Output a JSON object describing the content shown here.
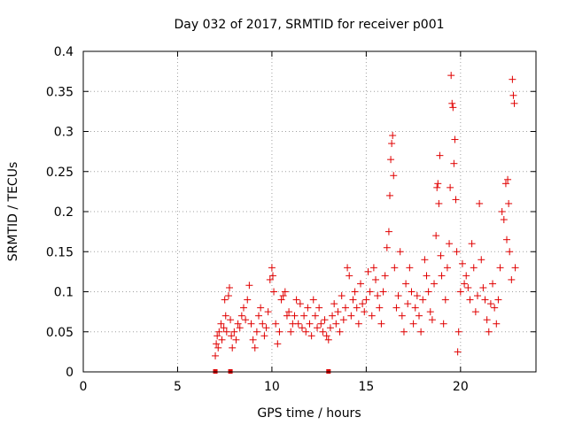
{
  "chart_data": {
    "type": "scatter",
    "title": "Day 032 of 2017, SRMTID for receiver p001",
    "xlabel": "GPS time / hours",
    "ylabel": "SRMTID / TECUs",
    "xlim": [
      0,
      24
    ],
    "ylim": [
      0,
      0.4
    ],
    "xticks": [
      0,
      5,
      10,
      15,
      20
    ],
    "yticks": [
      0,
      0.05,
      0.1,
      0.15,
      0.2,
      0.25,
      0.3,
      0.35,
      0.4
    ],
    "xtick_labels": [
      "0",
      "5",
      "10",
      "15",
      "20"
    ],
    "ytick_labels": [
      "0",
      "0.05",
      "0.1",
      "0.15",
      "0.2",
      "0.25",
      "0.3",
      "0.35",
      "0.4"
    ],
    "grid": true,
    "marker": "+",
    "color": "#e00000",
    "data_gaps_x": [
      7.0,
      7.8,
      13.0
    ],
    "series": [
      {
        "name": "SRMTID",
        "points": [
          [
            7.0,
            0.02
          ],
          [
            7.05,
            0.035
          ],
          [
            7.1,
            0.045
          ],
          [
            7.15,
            0.03
          ],
          [
            7.2,
            0.05
          ],
          [
            7.3,
            0.06
          ],
          [
            7.35,
            0.04
          ],
          [
            7.45,
            0.055
          ],
          [
            7.5,
            0.09
          ],
          [
            7.55,
            0.07
          ],
          [
            7.6,
            0.05
          ],
          [
            7.7,
            0.095
          ],
          [
            7.75,
            0.105
          ],
          [
            7.8,
            0.065
          ],
          [
            7.85,
            0.045
          ],
          [
            7.9,
            0.03
          ],
          [
            8.0,
            0.05
          ],
          [
            8.1,
            0.04
          ],
          [
            8.2,
            0.06
          ],
          [
            8.3,
            0.055
          ],
          [
            8.4,
            0.07
          ],
          [
            8.5,
            0.08
          ],
          [
            8.6,
            0.065
          ],
          [
            8.7,
            0.09
          ],
          [
            8.8,
            0.108
          ],
          [
            8.9,
            0.06
          ],
          [
            9.0,
            0.04
          ],
          [
            9.1,
            0.03
          ],
          [
            9.2,
            0.05
          ],
          [
            9.3,
            0.07
          ],
          [
            9.4,
            0.08
          ],
          [
            9.5,
            0.06
          ],
          [
            9.6,
            0.045
          ],
          [
            9.7,
            0.055
          ],
          [
            9.8,
            0.075
          ],
          [
            9.9,
            0.115
          ],
          [
            10.0,
            0.13
          ],
          [
            10.05,
            0.12
          ],
          [
            10.1,
            0.1
          ],
          [
            10.2,
            0.06
          ],
          [
            10.3,
            0.035
          ],
          [
            10.4,
            0.05
          ],
          [
            10.5,
            0.09
          ],
          [
            10.6,
            0.095
          ],
          [
            10.7,
            0.1
          ],
          [
            10.8,
            0.07
          ],
          [
            10.9,
            0.075
          ],
          [
            11.0,
            0.05
          ],
          [
            11.1,
            0.06
          ],
          [
            11.2,
            0.07
          ],
          [
            11.3,
            0.09
          ],
          [
            11.4,
            0.06
          ],
          [
            11.5,
            0.085
          ],
          [
            11.6,
            0.055
          ],
          [
            11.7,
            0.07
          ],
          [
            11.8,
            0.05
          ],
          [
            11.9,
            0.08
          ],
          [
            12.0,
            0.06
          ],
          [
            12.1,
            0.045
          ],
          [
            12.2,
            0.09
          ],
          [
            12.3,
            0.07
          ],
          [
            12.4,
            0.055
          ],
          [
            12.5,
            0.08
          ],
          [
            12.6,
            0.06
          ],
          [
            12.7,
            0.05
          ],
          [
            12.8,
            0.065
          ],
          [
            12.9,
            0.045
          ],
          [
            13.0,
            0.04
          ],
          [
            13.1,
            0.055
          ],
          [
            13.2,
            0.07
          ],
          [
            13.3,
            0.085
          ],
          [
            13.4,
            0.06
          ],
          [
            13.5,
            0.075
          ],
          [
            13.6,
            0.05
          ],
          [
            13.7,
            0.095
          ],
          [
            13.8,
            0.065
          ],
          [
            13.9,
            0.08
          ],
          [
            14.0,
            0.13
          ],
          [
            14.1,
            0.12
          ],
          [
            14.2,
            0.07
          ],
          [
            14.3,
            0.09
          ],
          [
            14.4,
            0.1
          ],
          [
            14.5,
            0.08
          ],
          [
            14.6,
            0.06
          ],
          [
            14.7,
            0.11
          ],
          [
            14.8,
            0.085
          ],
          [
            14.9,
            0.075
          ],
          [
            15.0,
            0.09
          ],
          [
            15.1,
            0.125
          ],
          [
            15.2,
            0.1
          ],
          [
            15.3,
            0.07
          ],
          [
            15.4,
            0.13
          ],
          [
            15.5,
            0.115
          ],
          [
            15.6,
            0.095
          ],
          [
            15.7,
            0.08
          ],
          [
            15.8,
            0.06
          ],
          [
            15.9,
            0.1
          ],
          [
            16.0,
            0.12
          ],
          [
            16.1,
            0.155
          ],
          [
            16.2,
            0.175
          ],
          [
            16.25,
            0.22
          ],
          [
            16.3,
            0.265
          ],
          [
            16.35,
            0.285
          ],
          [
            16.4,
            0.295
          ],
          [
            16.45,
            0.245
          ],
          [
            16.5,
            0.13
          ],
          [
            16.6,
            0.08
          ],
          [
            16.7,
            0.095
          ],
          [
            16.8,
            0.15
          ],
          [
            16.9,
            0.07
          ],
          [
            17.0,
            0.05
          ],
          [
            17.1,
            0.11
          ],
          [
            17.2,
            0.085
          ],
          [
            17.3,
            0.13
          ],
          [
            17.4,
            0.1
          ],
          [
            17.5,
            0.06
          ],
          [
            17.6,
            0.08
          ],
          [
            17.7,
            0.095
          ],
          [
            17.8,
            0.07
          ],
          [
            17.9,
            0.05
          ],
          [
            18.0,
            0.09
          ],
          [
            18.1,
            0.14
          ],
          [
            18.2,
            0.12
          ],
          [
            18.3,
            0.1
          ],
          [
            18.4,
            0.075
          ],
          [
            18.5,
            0.065
          ],
          [
            18.6,
            0.11
          ],
          [
            18.7,
            0.17
          ],
          [
            18.75,
            0.23
          ],
          [
            18.8,
            0.235
          ],
          [
            18.85,
            0.21
          ],
          [
            18.9,
            0.27
          ],
          [
            18.95,
            0.145
          ],
          [
            19.0,
            0.12
          ],
          [
            19.1,
            0.06
          ],
          [
            19.2,
            0.09
          ],
          [
            19.3,
            0.13
          ],
          [
            19.4,
            0.16
          ],
          [
            19.45,
            0.23
          ],
          [
            19.5,
            0.37
          ],
          [
            19.55,
            0.335
          ],
          [
            19.6,
            0.33
          ],
          [
            19.65,
            0.26
          ],
          [
            19.7,
            0.29
          ],
          [
            19.75,
            0.215
          ],
          [
            19.8,
            0.15
          ],
          [
            19.85,
            0.025
          ],
          [
            19.9,
            0.05
          ],
          [
            20.0,
            0.1
          ],
          [
            20.1,
            0.135
          ],
          [
            20.2,
            0.11
          ],
          [
            20.3,
            0.12
          ],
          [
            20.4,
            0.105
          ],
          [
            20.5,
            0.09
          ],
          [
            20.6,
            0.16
          ],
          [
            20.7,
            0.13
          ],
          [
            20.8,
            0.075
          ],
          [
            20.9,
            0.095
          ],
          [
            21.0,
            0.21
          ],
          [
            21.1,
            0.14
          ],
          [
            21.2,
            0.105
          ],
          [
            21.3,
            0.09
          ],
          [
            21.4,
            0.065
          ],
          [
            21.5,
            0.05
          ],
          [
            21.6,
            0.085
          ],
          [
            21.7,
            0.11
          ],
          [
            21.8,
            0.08
          ],
          [
            21.9,
            0.06
          ],
          [
            22.0,
            0.09
          ],
          [
            22.1,
            0.13
          ],
          [
            22.2,
            0.2
          ],
          [
            22.3,
            0.19
          ],
          [
            22.4,
            0.235
          ],
          [
            22.45,
            0.165
          ],
          [
            22.5,
            0.24
          ],
          [
            22.55,
            0.21
          ],
          [
            22.6,
            0.15
          ],
          [
            22.7,
            0.115
          ],
          [
            22.75,
            0.365
          ],
          [
            22.8,
            0.345
          ],
          [
            22.85,
            0.335
          ],
          [
            22.9,
            0.13
          ]
        ]
      }
    ]
  }
}
